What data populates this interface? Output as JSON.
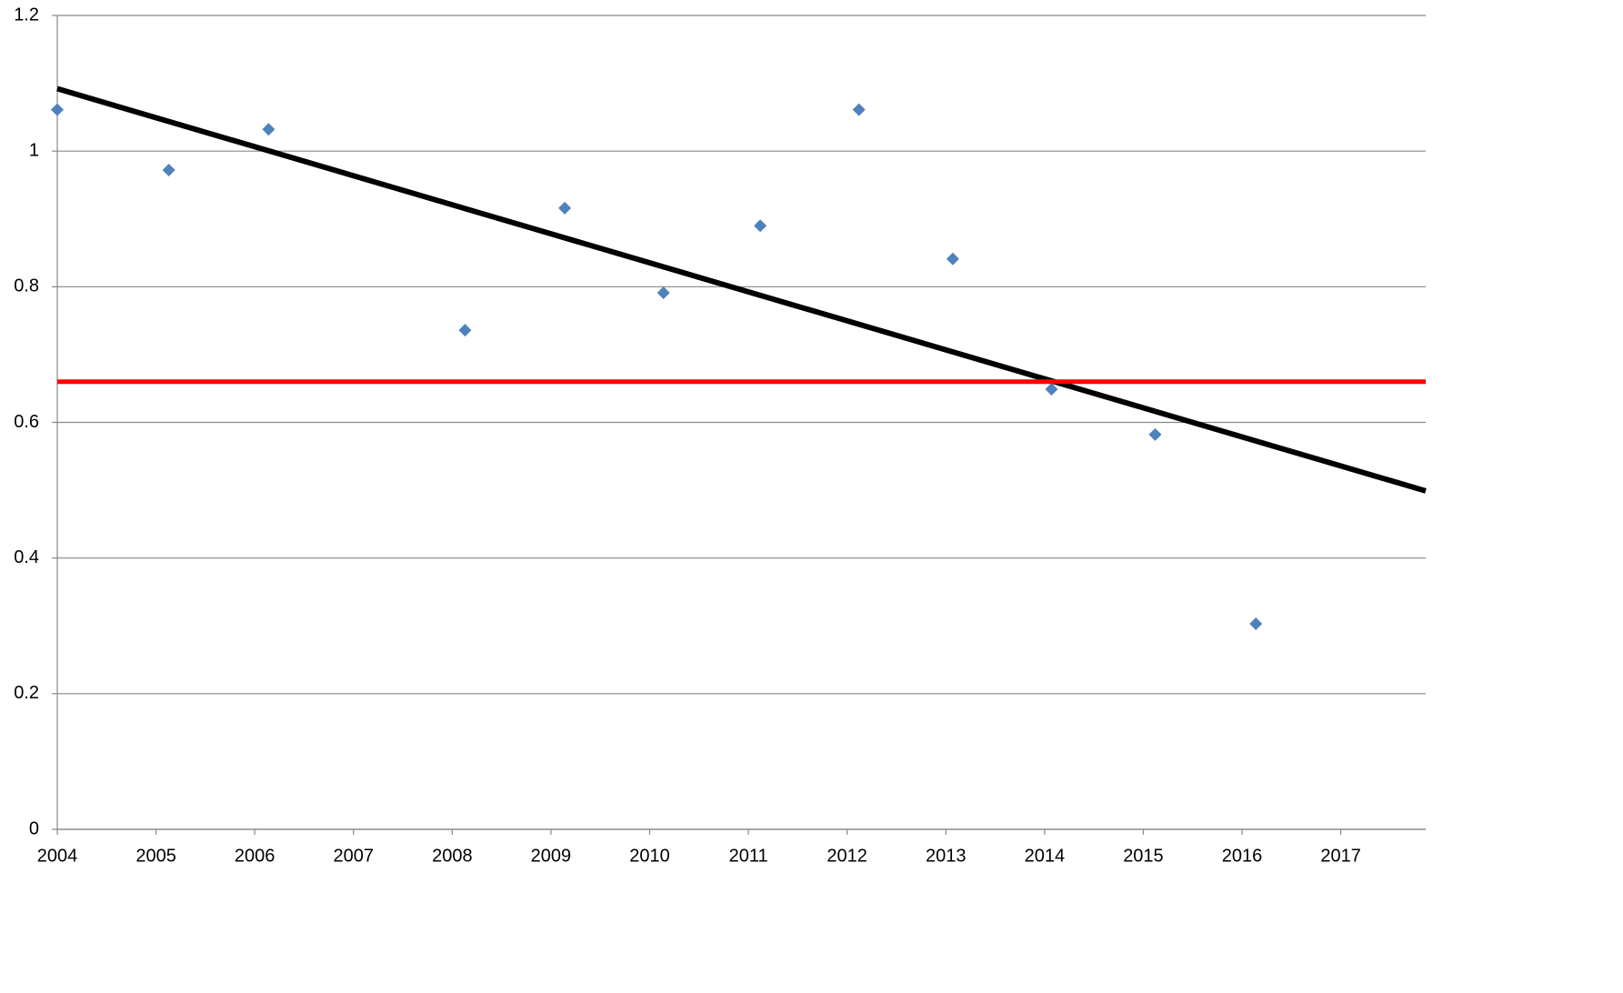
{
  "chart_data": {
    "type": "scatter",
    "xlim": [
      2004,
      2017.86
    ],
    "ylim": [
      0,
      1.2
    ],
    "xticks": [
      2004,
      2005,
      2006,
      2007,
      2008,
      2009,
      2010,
      2011,
      2012,
      2013,
      2014,
      2015,
      2016,
      2017
    ],
    "yticks": [
      0,
      0.2,
      0.4,
      0.6,
      0.8,
      1,
      1.2
    ],
    "grid": true,
    "series": [
      {
        "style": "marker",
        "color": "#4f81bd",
        "x": [
          2004.0,
          2005.13,
          2006.14,
          2008.13,
          2009.14,
          2010.14,
          2011.12,
          2012.12,
          2013.07,
          2014.07,
          2015.12,
          2016.14
        ],
        "values": [
          1.061,
          0.972,
          1.032,
          0.736,
          0.916,
          0.791,
          0.89,
          1.061,
          0.841,
          0.649,
          0.582,
          0.303
        ]
      },
      {
        "style": "line",
        "color": "#000000",
        "x": [
          2004,
          2017.86
        ],
        "values": [
          1.092,
          0.499
        ]
      },
      {
        "style": "line",
        "color": "#ff0000",
        "x": [
          2004,
          2017.86
        ],
        "values": [
          0.66,
          0.66
        ]
      }
    ]
  }
}
